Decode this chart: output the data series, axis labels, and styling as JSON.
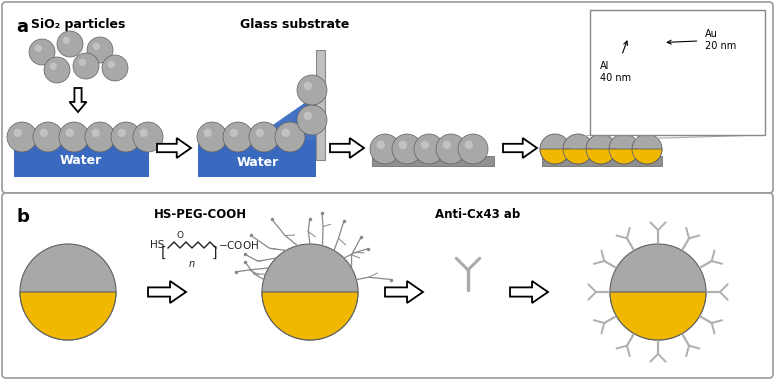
{
  "fig_width": 7.77,
  "fig_height": 3.8,
  "bg_color": "#ffffff",
  "gray": "#a8a8a8",
  "gray_dark": "#787878",
  "gold": "#f0b800",
  "blue": "#3a6abf",
  "glass_gray": "#b0b0b0",
  "substrate_gray": "#909090",
  "al_color": "#c8dff0",
  "panel_edge": "#999999",
  "label_a": "a",
  "label_b": "b",
  "sio2_text": "SiO₂ particles",
  "glass_text": "Glass substrate",
  "water_text": "Water",
  "hs_peg_text": "HS-PEG-COOH",
  "anti_text": "Anti-Cx43 ab",
  "au_text": "Au\n20 nm",
  "al_text": "Al\n40 nm"
}
